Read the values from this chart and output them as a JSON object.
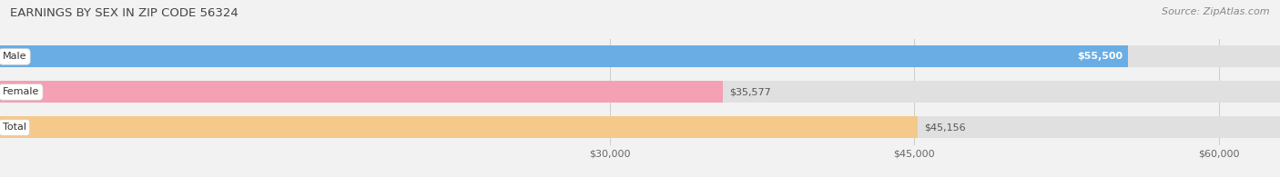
{
  "title": "EARNINGS BY SEX IN ZIP CODE 56324",
  "source": "Source: ZipAtlas.com",
  "categories": [
    "Male",
    "Female",
    "Total"
  ],
  "values": [
    55500,
    35577,
    45156
  ],
  "bar_colors": [
    "#6aade4",
    "#f4a0b5",
    "#f5c98a"
  ],
  "bar_labels": [
    "$55,500",
    "$35,577",
    "$45,156"
  ],
  "label_inside": [
    true,
    false,
    false
  ],
  "xmin": 0,
  "xmax": 63000,
  "xticks": [
    30000,
    45000,
    60000
  ],
  "xtick_labels": [
    "$30,000",
    "$45,000",
    "$60,000"
  ],
  "background_color": "#f2f2f2",
  "bar_bg_color": "#e0e0e0",
  "bar_height": 0.62,
  "figsize": [
    14.06,
    1.95
  ],
  "dpi": 100
}
